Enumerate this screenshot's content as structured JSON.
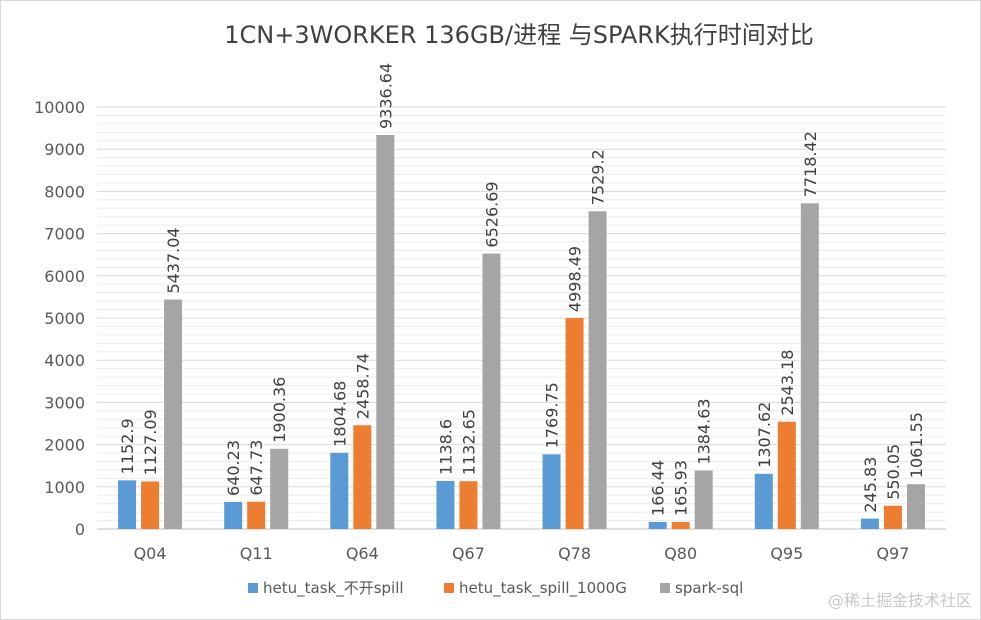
{
  "watermark": "@稀土掘金技术社区",
  "chart_data": {
    "type": "bar",
    "title": "1CN+3WORKER 136GB/进程 与SPARK执行时间对比",
    "xlabel": "",
    "ylabel": "",
    "ylim": [
      0,
      10000
    ],
    "yticks": [
      0,
      1000,
      2000,
      3000,
      4000,
      5000,
      6000,
      7000,
      8000,
      9000,
      10000
    ],
    "categories": [
      "Q04",
      "Q11",
      "Q64",
      "Q67",
      "Q78",
      "Q80",
      "Q95",
      "Q97"
    ],
    "series": [
      {
        "name": "hetu_task_不开spill",
        "color": "#5b9bd5",
        "values": [
          1152.9,
          640.23,
          1804.68,
          1138.6,
          1769.75,
          166.44,
          1307.62,
          245.83
        ]
      },
      {
        "name": "hetu_task_spill_1000G",
        "color": "#ed7d31",
        "values": [
          1127.09,
          647.73,
          2458.74,
          1132.65,
          4998.49,
          165.93,
          2543.18,
          550.05
        ]
      },
      {
        "name": "spark-sql",
        "color": "#a5a5a5",
        "values": [
          5437.04,
          1900.36,
          9336.64,
          6526.69,
          7529.2,
          1384.63,
          7718.42,
          1061.55
        ]
      }
    ],
    "grid": true,
    "legend_position": "bottom"
  }
}
